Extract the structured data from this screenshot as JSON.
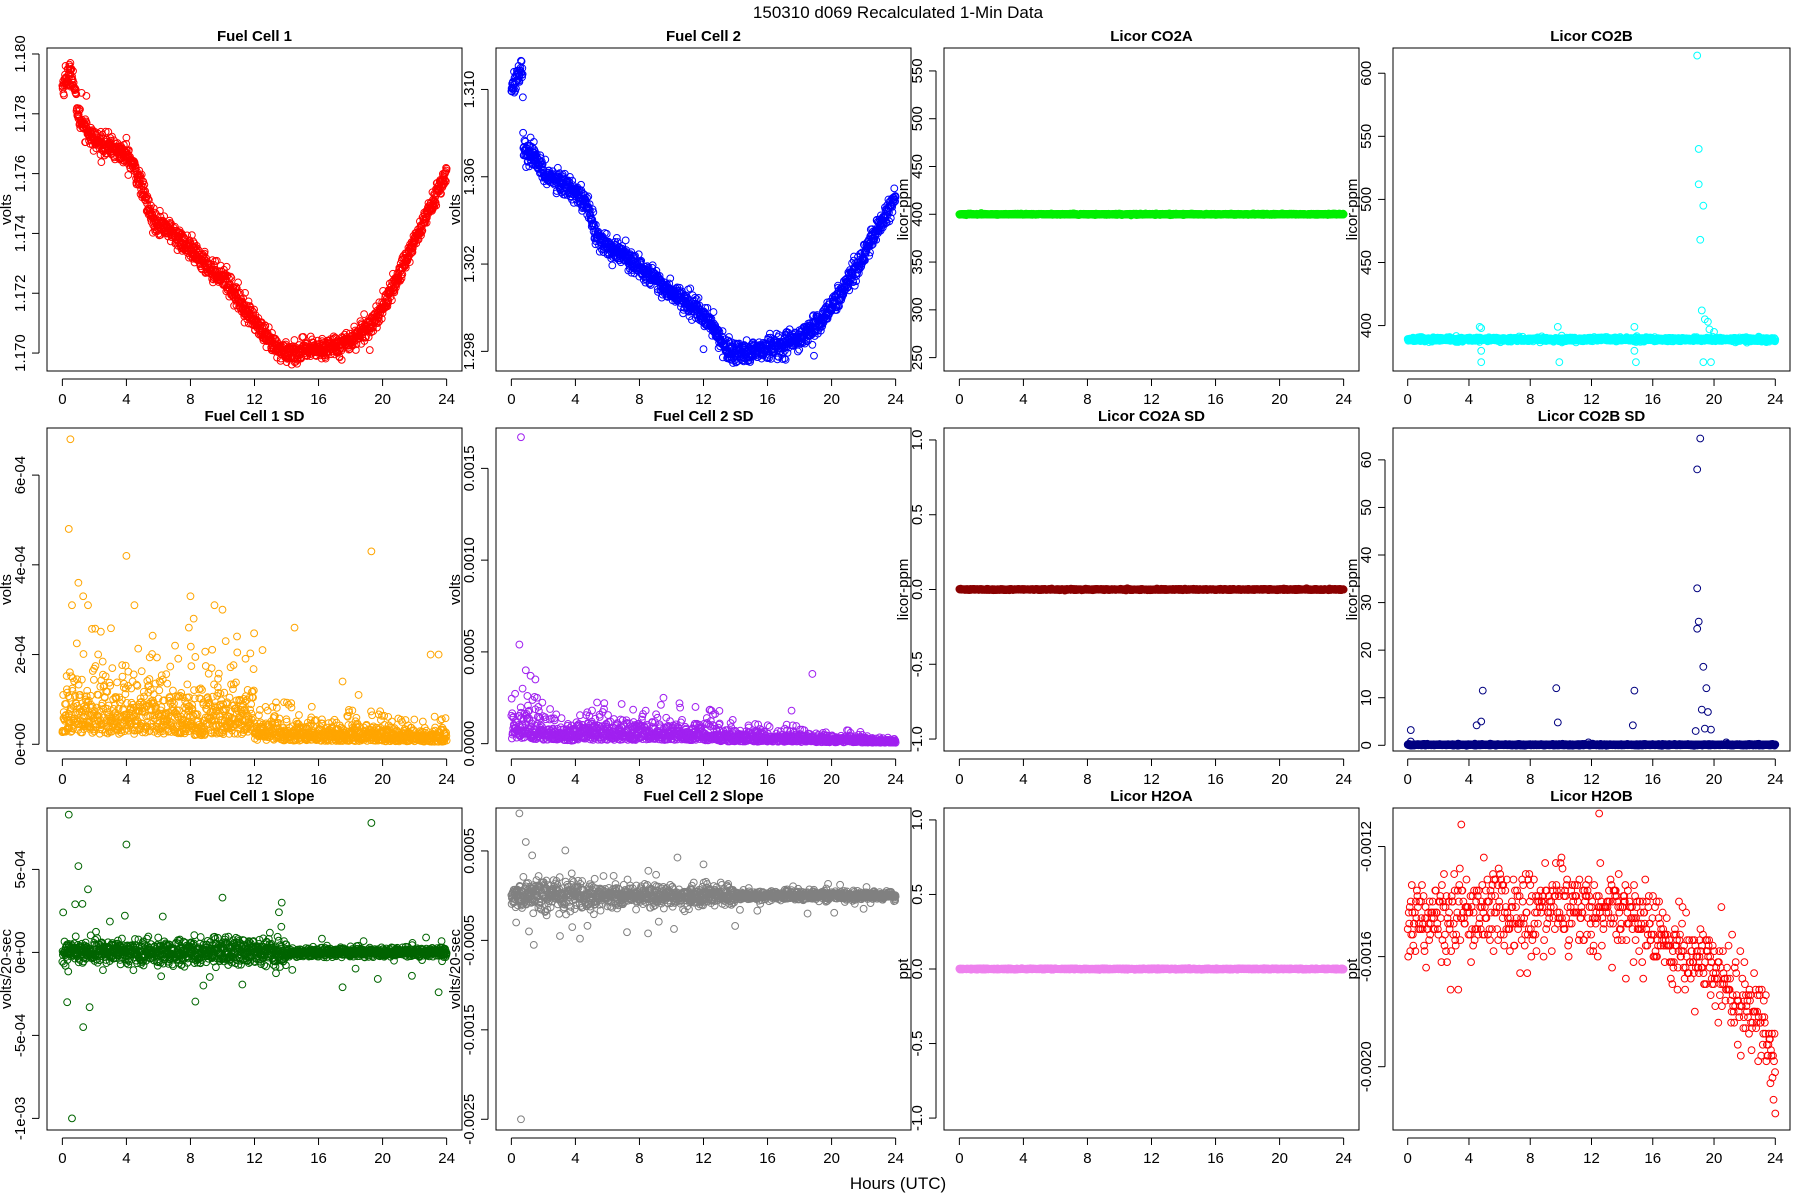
{
  "figure": {
    "title": "150310    d069   Recalculated 1-Min Data",
    "xlabel": "Hours (UTC)"
  },
  "chart_data": [
    {
      "id": "fc1",
      "type": "scatter",
      "title": "Fuel Cell 1",
      "ylabel": "volts",
      "color": "#ff0000",
      "xlim": [
        -0.96,
        24.96
      ],
      "ylim": [
        1.1694,
        1.1802
      ],
      "xticks": [
        0,
        4,
        8,
        12,
        16,
        20,
        24
      ],
      "yticks": [
        1.17,
        1.172,
        1.174,
        1.176,
        1.178,
        1.18
      ],
      "ytick_labels": [
        "1.170",
        "1.172",
        "1.174",
        "1.176",
        "1.178",
        "1.180"
      ],
      "gen": "trend",
      "pts": [
        [
          0,
          1.1789
        ],
        [
          0.3,
          1.1792
        ],
        [
          0.6,
          1.1794
        ],
        [
          1,
          1.1779
        ],
        [
          1.5,
          1.1775
        ],
        [
          2,
          1.1771
        ],
        [
          3,
          1.1769
        ],
        [
          4,
          1.1766
        ],
        [
          4.5,
          1.1762
        ],
        [
          5,
          1.1755
        ],
        [
          5.6,
          1.1745
        ],
        [
          6.5,
          1.1742
        ],
        [
          7.5,
          1.1737
        ],
        [
          8.5,
          1.1732
        ],
        [
          9.5,
          1.1727
        ],
        [
          10,
          1.1726
        ],
        [
          11,
          1.1718
        ],
        [
          12,
          1.1711
        ],
        [
          12.7,
          1.1705
        ],
        [
          13.5,
          1.1701
        ],
        [
          14.5,
          1.17
        ],
        [
          15.5,
          1.1701
        ],
        [
          16.5,
          1.1702
        ],
        [
          17.5,
          1.1703
        ],
        [
          18.5,
          1.1706
        ],
        [
          19.5,
          1.1711
        ],
        [
          20.5,
          1.172
        ],
        [
          21.5,
          1.1732
        ],
        [
          22.5,
          1.1743
        ],
        [
          23.5,
          1.1755
        ],
        [
          24,
          1.176
        ]
      ],
      "noise": 0.00018,
      "outliers": [
        [
          0.2,
          1.1796
        ],
        [
          0.5,
          1.1797
        ],
        [
          1.2,
          1.1787
        ],
        [
          1.5,
          1.1786
        ],
        [
          4,
          1.1772
        ],
        [
          19.2,
          1.1701
        ]
      ]
    },
    {
      "id": "fc2",
      "type": "scatter",
      "title": "Fuel Cell 2",
      "ylabel": "volts",
      "color": "#0000ff",
      "xlim": [
        -0.96,
        24.96
      ],
      "ylim": [
        1.2971,
        1.3119
      ],
      "xticks": [
        0,
        4,
        8,
        12,
        16,
        20,
        24
      ],
      "yticks": [
        1.298,
        1.302,
        1.306,
        1.31
      ],
      "ytick_labels": [
        "1.298",
        "1.302",
        "1.306",
        "1.310"
      ],
      "gen": "trend",
      "pts": [
        [
          0,
          1.3101
        ],
        [
          0.35,
          1.3106
        ],
        [
          0.7,
          1.311
        ],
        [
          0.75,
          1.3072
        ],
        [
          1.5,
          1.3068
        ],
        [
          2,
          1.3062
        ],
        [
          3,
          1.3057
        ],
        [
          4,
          1.3054
        ],
        [
          4.8,
          1.3046
        ],
        [
          5.3,
          1.3033
        ],
        [
          6,
          1.3028
        ],
        [
          7,
          1.3025
        ],
        [
          8,
          1.3018
        ],
        [
          9,
          1.3014
        ],
        [
          9.5,
          1.3009
        ],
        [
          10.5,
          1.3005
        ],
        [
          11,
          1.3003
        ],
        [
          11.8,
          1.2998
        ],
        [
          12.5,
          1.2992
        ],
        [
          13.5,
          1.2981
        ],
        [
          14,
          1.2978
        ],
        [
          15,
          1.2979
        ],
        [
          16,
          1.2982
        ],
        [
          17,
          1.2983
        ],
        [
          18,
          1.2986
        ],
        [
          19,
          1.2992
        ],
        [
          20,
          1.3
        ],
        [
          21,
          1.3012
        ],
        [
          22,
          1.3024
        ],
        [
          23,
          1.3038
        ],
        [
          24,
          1.3051
        ]
      ],
      "noise": 0.00025,
      "outliers": [
        [
          1.2,
          1.3078
        ],
        [
          1.4,
          1.3076
        ],
        [
          12,
          1.2981
        ],
        [
          18.9,
          1.2978
        ],
        [
          18.8,
          1.2983
        ]
      ]
    },
    {
      "id": "co2a",
      "type": "scatter",
      "title": "Licor CO2A",
      "ylabel": "licor-ppm",
      "color": "#00ee00",
      "xlim": [
        -0.96,
        24.96
      ],
      "ylim": [
        236,
        574
      ],
      "xticks": [
        0,
        4,
        8,
        12,
        16,
        20,
        24
      ],
      "yticks": [
        250,
        300,
        350,
        400,
        450,
        500,
        550
      ],
      "ytick_labels": [
        "250",
        "300",
        "350",
        "400",
        "450",
        "500",
        "550"
      ],
      "gen": "flat",
      "value": 400,
      "noise": 0.3,
      "outliers": []
    },
    {
      "id": "co2b",
      "type": "scatter",
      "title": "Licor CO2B",
      "ylabel": "licor-ppm",
      "color": "#00ffff",
      "xlim": [
        -0.96,
        24.96
      ],
      "ylim": [
        364,
        620
      ],
      "xticks": [
        0,
        4,
        8,
        12,
        16,
        20,
        24
      ],
      "yticks": [
        400,
        450,
        500,
        550,
        600
      ],
      "ytick_labels": [
        "400",
        "450",
        "500",
        "550",
        "600"
      ],
      "gen": "flat",
      "value": 389,
      "noise": 0.8,
      "outliers": [
        [
          4.7,
          399
        ],
        [
          4.8,
          398
        ],
        [
          4.8,
          380
        ],
        [
          4.8,
          371
        ],
        [
          9.8,
          399
        ],
        [
          9.9,
          371
        ],
        [
          14.8,
          399
        ],
        [
          14.8,
          380
        ],
        [
          14.9,
          371
        ],
        [
          18.9,
          614
        ],
        [
          19,
          540
        ],
        [
          19,
          512
        ],
        [
          19.1,
          468
        ],
        [
          19.3,
          495
        ],
        [
          19.2,
          412
        ],
        [
          19.4,
          405
        ],
        [
          19.6,
          403
        ],
        [
          19.7,
          397
        ],
        [
          19.3,
          371
        ],
        [
          19.8,
          371
        ],
        [
          20,
          395
        ]
      ]
    },
    {
      "id": "fc1sd",
      "type": "scatter",
      "title": "Fuel Cell 1 SD",
      "ylabel": "volts",
      "color": "#ffa500",
      "xlim": [
        -0.96,
        24.96
      ],
      "ylim": [
        -1.5e-05,
        0.000705
      ],
      "xticks": [
        0,
        4,
        8,
        12,
        16,
        20,
        24
      ],
      "yticks": [
        0,
        0.0002,
        0.0004,
        0.0006
      ],
      "ytick_labels": [
        "0e+00",
        "2e-04",
        "4e-04",
        "6e-04"
      ],
      "gen": "scatter_base",
      "segments": [
        [
          0,
          8,
          6.5e-05,
          6.5e-05
        ],
        [
          8,
          12,
          5.5e-05,
          6.5e-05
        ],
        [
          12,
          24,
          2.5e-05,
          1.5e-05
        ]
      ],
      "outliers": [
        [
          0.5,
          0.00068
        ],
        [
          0.4,
          0.00048
        ],
        [
          1,
          0.00036
        ],
        [
          1.3,
          0.00033
        ],
        [
          1.6,
          0.00031
        ],
        [
          0.6,
          0.00031
        ],
        [
          4,
          0.00042
        ],
        [
          4.5,
          0.00031
        ],
        [
          8,
          0.00033
        ],
        [
          8.2,
          0.00028
        ],
        [
          7.9,
          0.00026
        ],
        [
          9.5,
          0.00031
        ],
        [
          10,
          0.0003
        ],
        [
          10.2,
          0.00023
        ],
        [
          12.5,
          0.00021
        ],
        [
          14.5,
          0.00026
        ],
        [
          17.5,
          0.00014
        ],
        [
          18.5,
          0.00011
        ],
        [
          19.3,
          0.00043
        ],
        [
          23,
          0.0002
        ],
        [
          23.5,
          0.0002
        ]
      ]
    },
    {
      "id": "fc2sd",
      "type": "scatter",
      "title": "Fuel Cell 2 SD",
      "ylabel": "volts",
      "color": "#a020f0",
      "xlim": [
        -0.96,
        24.96
      ],
      "ylim": [
        -4e-05,
        0.00172
      ],
      "xticks": [
        0,
        4,
        8,
        12,
        16,
        20,
        24
      ],
      "yticks": [
        0,
        0.0005,
        0.001,
        0.0015
      ],
      "ytick_labels": [
        "0.0000",
        "0.0005",
        "0.0010",
        "0.0015"
      ],
      "gen": "scatter_base",
      "segments": [
        [
          0,
          4,
          8e-05,
          4e-05
        ],
        [
          4,
          13,
          6e-05,
          5e-05
        ],
        [
          13,
          24,
          3.5e-05,
          1.2e-05
        ]
      ],
      "outliers": [
        [
          0.6,
          0.00167
        ],
        [
          0.5,
          0.00054
        ],
        [
          0.9,
          0.0004
        ],
        [
          1.2,
          0.00037
        ],
        [
          1.5,
          0.00035
        ],
        [
          0.7,
          0.0003
        ],
        [
          1,
          0.00026
        ],
        [
          1.6,
          0.00025
        ],
        [
          9.5,
          0.00025
        ],
        [
          10.5,
          0.00022
        ],
        [
          11.5,
          0.0002
        ],
        [
          12.5,
          0.00018
        ],
        [
          17.5,
          0.00018
        ],
        [
          18.8,
          0.00038
        ]
      ]
    },
    {
      "id": "co2asd",
      "type": "scatter",
      "title": "Licor CO2A SD",
      "ylabel": "licor-ppm",
      "color": "#8b0000",
      "xlim": [
        -0.96,
        24.96
      ],
      "ylim": [
        -1.08,
        1.08
      ],
      "xticks": [
        0,
        4,
        8,
        12,
        16,
        20,
        24
      ],
      "yticks": [
        -1,
        -0.5,
        0,
        0.5,
        1
      ],
      "ytick_labels": [
        "-1.0",
        "-0.5",
        "0.0",
        "0.5",
        "1.0"
      ],
      "gen": "flat",
      "value": 0,
      "noise": 0.002,
      "outliers": []
    },
    {
      "id": "co2bsd",
      "type": "scatter",
      "title": "Licor CO2B SD",
      "ylabel": "licor-ppm",
      "color": "#000080",
      "xlim": [
        -0.96,
        24.96
      ],
      "ylim": [
        -1.2,
        66.7
      ],
      "xticks": [
        0,
        4,
        8,
        12,
        16,
        20,
        24
      ],
      "yticks": [
        0,
        10,
        20,
        30,
        40,
        50,
        60
      ],
      "ytick_labels": [
        "0",
        "10",
        "20",
        "30",
        "40",
        "50",
        "60"
      ],
      "gen": "flat",
      "value": 0.1,
      "noise": 0.08,
      "outliers": [
        [
          0.2,
          3.2
        ],
        [
          0.2,
          0.8
        ],
        [
          4.5,
          4.2
        ],
        [
          4.8,
          5
        ],
        [
          4.9,
          11.5
        ],
        [
          9.8,
          4.8
        ],
        [
          9.7,
          12
        ],
        [
          14.8,
          11.5
        ],
        [
          14.7,
          4.2
        ],
        [
          18.9,
          58
        ],
        [
          19.1,
          64.5
        ],
        [
          18.9,
          33
        ],
        [
          19,
          26
        ],
        [
          18.9,
          24.5
        ],
        [
          19.3,
          16.5
        ],
        [
          19.5,
          12
        ],
        [
          19.2,
          7.5
        ],
        [
          19.6,
          7
        ],
        [
          19.4,
          3.5
        ],
        [
          19.8,
          3.3
        ],
        [
          18.8,
          3
        ],
        [
          11.8,
          0.6
        ],
        [
          20.8,
          0.6
        ]
      ]
    },
    {
      "id": "fc1slope",
      "type": "scatter",
      "title": "Fuel Cell 1 Slope",
      "ylabel": "volts/20-sec",
      "color": "#006400",
      "xlim": [
        -0.96,
        24.96
      ],
      "ylim": [
        -0.00107,
        0.00087
      ],
      "xticks": [
        0,
        4,
        8,
        12,
        16,
        20,
        24
      ],
      "yticks": [
        -0.001,
        -0.0005,
        0,
        0.0005
      ],
      "ytick_labels": [
        "-1e-03",
        "-5e-04",
        "0e+00",
        "5e-04"
      ],
      "gen": "sym",
      "segments": [
        [
          0,
          8,
          5e-05,
          5e-05
        ],
        [
          8,
          14,
          6e-05,
          6e-05
        ],
        [
          14,
          24,
          2e-05,
          2e-05
        ]
      ],
      "outliers": [
        [
          0.4,
          0.00083
        ],
        [
          1,
          0.00052
        ],
        [
          1.6,
          0.00038
        ],
        [
          0.8,
          0.00029
        ],
        [
          1.3,
          -0.00045
        ],
        [
          0.6,
          -0.001
        ],
        [
          4,
          0.00065
        ],
        [
          10,
          0.00033
        ],
        [
          13.7,
          0.0003
        ],
        [
          19.3,
          0.00078
        ],
        [
          17.5,
          -0.00021
        ],
        [
          19.7,
          -0.00016
        ],
        [
          23.5,
          -0.00024
        ],
        [
          0.3,
          -0.0003
        ],
        [
          1.7,
          -0.00033
        ]
      ]
    },
    {
      "id": "fc2slope",
      "type": "scatter",
      "title": "Fuel Cell 2 Slope",
      "ylabel": "volts/20-sec",
      "color": "#808080",
      "xlim": [
        -0.96,
        24.96
      ],
      "ylim": [
        -0.00262,
        0.00098
      ],
      "xticks": [
        0,
        4,
        8,
        12,
        16,
        20,
        24
      ],
      "yticks": [
        -0.0025,
        -0.0015,
        -0.0005,
        0.0005
      ],
      "ytick_labels": [
        "-0.0025",
        "-0.0015",
        "-0.0005",
        "0.0005"
      ],
      "gen": "sym",
      "segments": [
        [
          0,
          4,
          0.00012,
          0.00012
        ],
        [
          4,
          14,
          0.0001,
          8e-05
        ],
        [
          14,
          24,
          4e-05,
          3e-05
        ]
      ],
      "outliers": [
        [
          0.5,
          0.00092
        ],
        [
          0.9,
          0.0006
        ],
        [
          1.3,
          0.00045
        ],
        [
          0.6,
          -0.0025
        ],
        [
          1.4,
          -0.00055
        ],
        [
          1.1,
          -0.0004
        ],
        [
          0.3,
          -0.0003
        ],
        [
          12,
          0.00035
        ],
        [
          18.5,
          -0.0002
        ]
      ]
    },
    {
      "id": "h2oa",
      "type": "scatter",
      "title": "Licor H2OA",
      "ylabel": "ppt",
      "color": "#ee82ee",
      "xlim": [
        -0.96,
        24.96
      ],
      "ylim": [
        -1.08,
        1.08
      ],
      "xticks": [
        0,
        4,
        8,
        12,
        16,
        20,
        24
      ],
      "yticks": [
        -1,
        -0.5,
        0,
        0.5,
        1
      ],
      "ytick_labels": [
        "-1.0",
        "-0.5",
        "0.0",
        "0.5",
        "1.0"
      ],
      "gen": "flat",
      "value": 0,
      "noise": 0.002,
      "outliers": []
    },
    {
      "id": "h2ob",
      "type": "scatter",
      "title": "Licor H2OB",
      "ylabel": "ppt",
      "color": "#ff0000",
      "xlim": [
        -0.96,
        24.96
      ],
      "ylim": [
        -0.00223,
        -0.00106
      ],
      "xticks": [
        0,
        4,
        8,
        12,
        16,
        20,
        24
      ],
      "yticks": [
        -0.002,
        -0.0016,
        -0.0012
      ],
      "ytick_labels": [
        "-0.0020",
        "-0.0016",
        "-0.0012"
      ],
      "gen": "quant",
      "pts": [
        [
          0,
          -0.00145
        ],
        [
          8,
          -0.00143
        ],
        [
          14,
          -0.00143
        ],
        [
          16,
          -0.00152
        ],
        [
          20,
          -0.00165
        ],
        [
          23,
          -0.00185
        ],
        [
          24,
          -0.00195
        ]
      ],
      "step": 2e-05,
      "spread": 8e-05,
      "outliers": [
        [
          12.5,
          -0.00108
        ],
        [
          3.5,
          -0.00112
        ],
        [
          24,
          -0.00217
        ]
      ]
    }
  ]
}
